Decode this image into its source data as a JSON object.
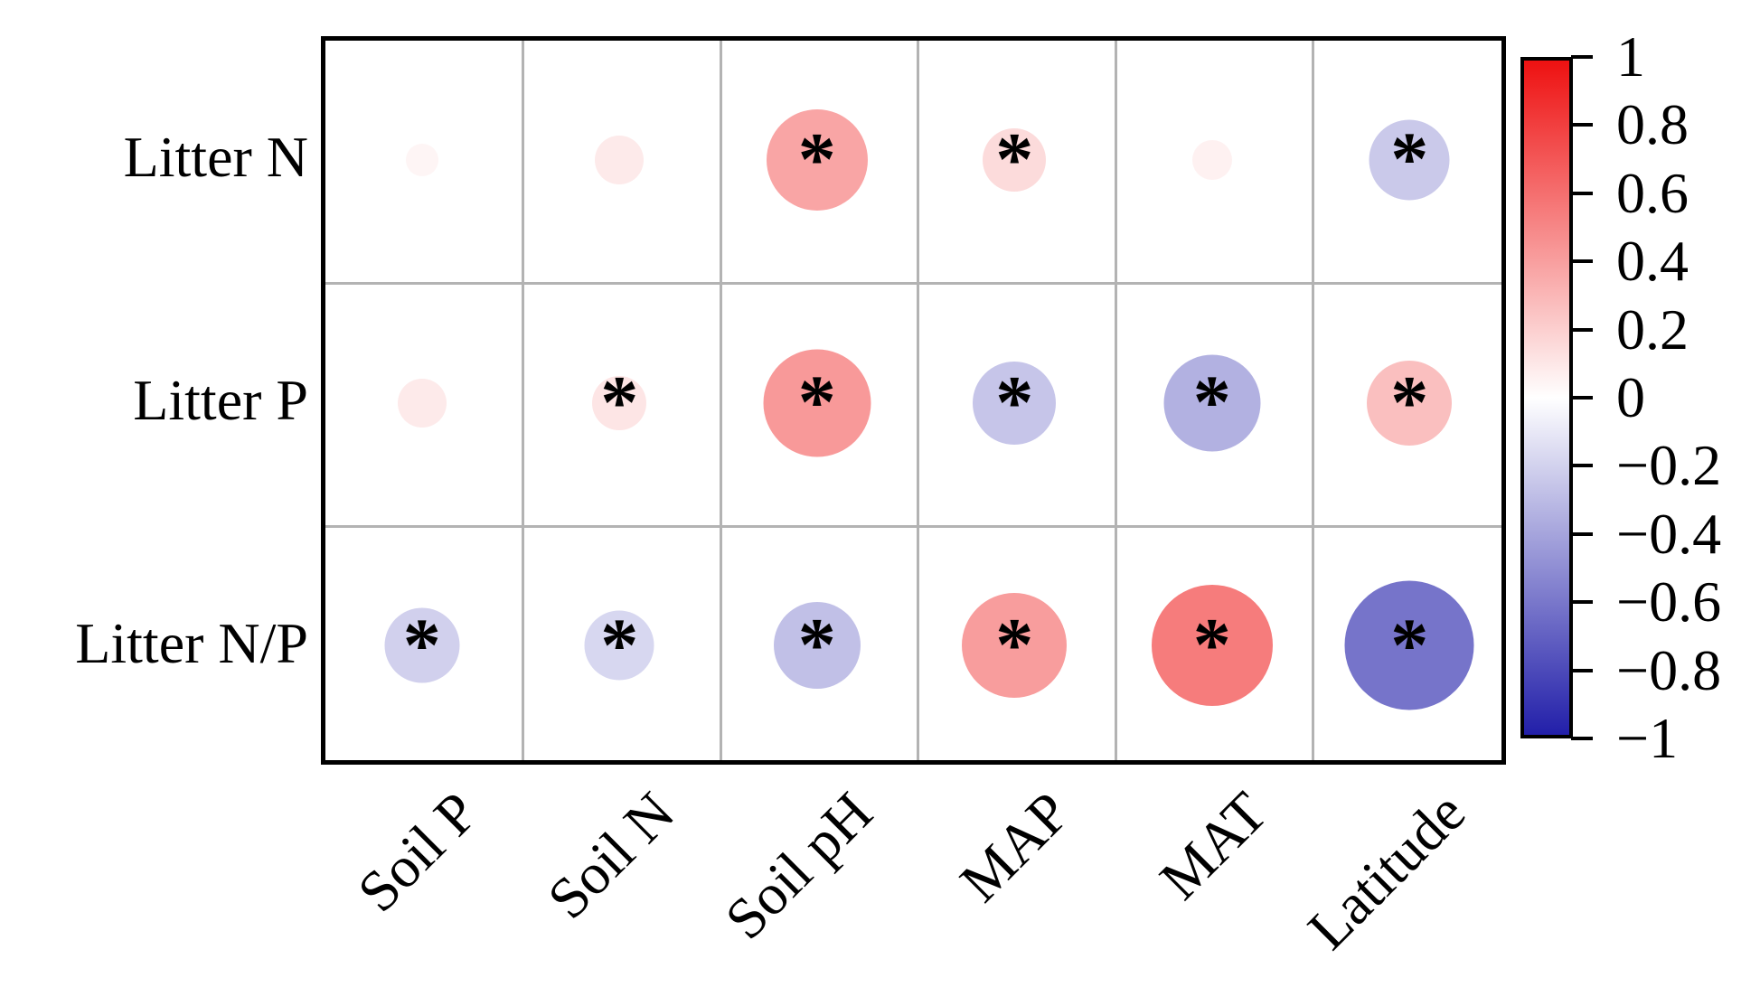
{
  "chart_data": {
    "type": "heatmap",
    "subtype": "correlation-bubble-matrix",
    "title": "",
    "rows": [
      "Litter N",
      "Litter P",
      "Litter N/P"
    ],
    "columns": [
      "Soil P",
      "Soil N",
      "Soil pH",
      "MAP",
      "MAT",
      "Latitude"
    ],
    "series": [
      {
        "name": "Litter N",
        "values": [
          0.04,
          0.09,
          0.38,
          0.15,
          0.06,
          -0.24
        ],
        "significant": [
          false,
          false,
          true,
          true,
          false,
          true
        ]
      },
      {
        "name": "Litter P",
        "values": [
          0.09,
          0.11,
          0.43,
          -0.26,
          -0.35,
          0.27
        ],
        "significant": [
          false,
          true,
          true,
          true,
          true,
          true
        ]
      },
      {
        "name": "Litter N/P",
        "values": [
          -0.21,
          -0.18,
          -0.28,
          0.41,
          0.55,
          -0.62
        ],
        "significant": [
          true,
          true,
          true,
          true,
          true,
          true
        ]
      }
    ],
    "significance_marker": "*",
    "encoding": {
      "size": "abs(r)",
      "color": "r"
    },
    "grid": true,
    "colorbar": {
      "position": "right",
      "min": -1,
      "max": 1,
      "tick_labels": [
        "1",
        "0.8",
        "0.6",
        "0.4",
        "0.2",
        "0",
        "−0.2",
        "−0.4",
        "−0.6",
        "−0.8",
        "−1"
      ],
      "color_max": "#ee1111",
      "color_mid": "#ffffff",
      "color_min": "#221fa9"
    }
  }
}
